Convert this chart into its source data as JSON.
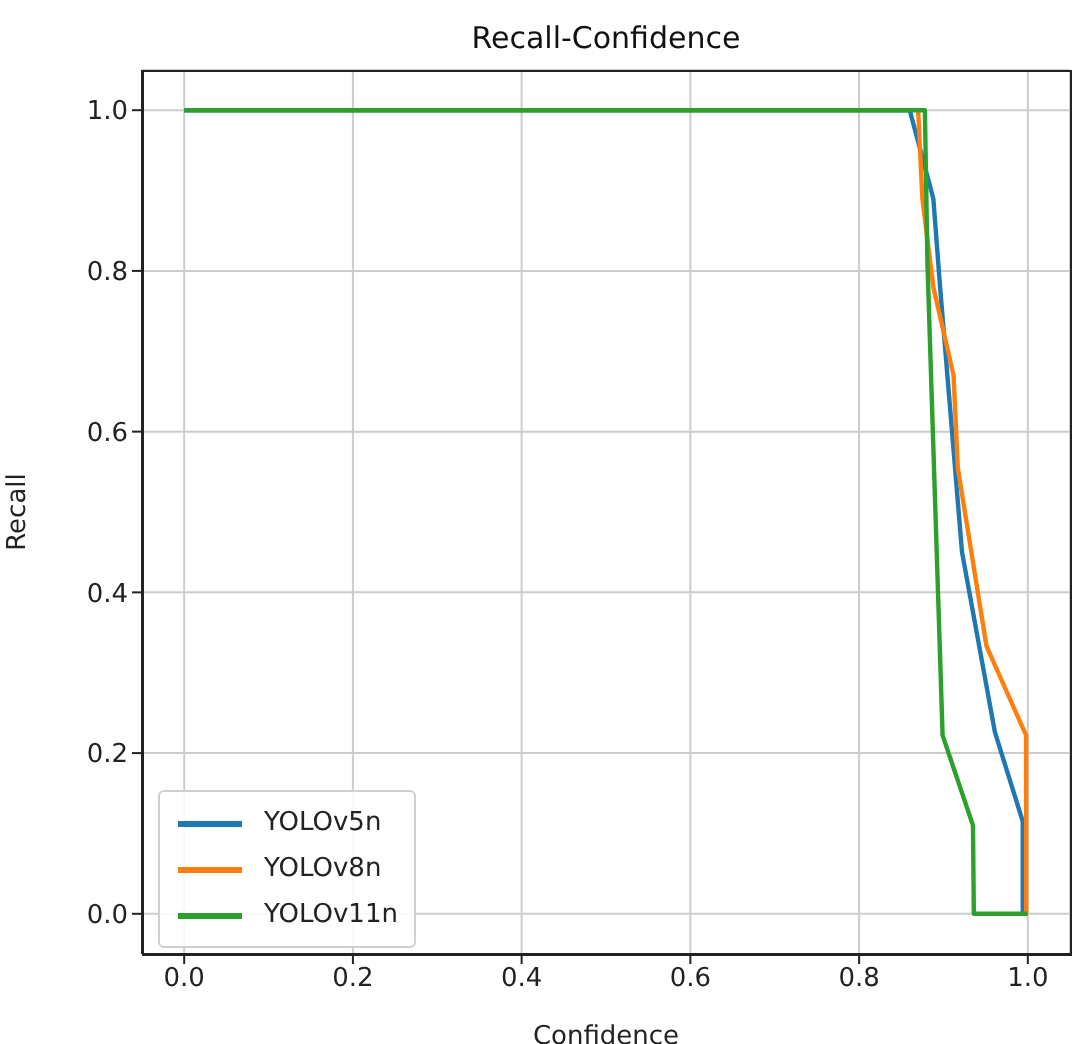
{
  "chart_data": {
    "type": "line",
    "title": "Recall-Confidence",
    "xlabel": "Confidence",
    "ylabel": "Recall",
    "xlim": [
      -0.05,
      1.05
    ],
    "xticks": [
      {
        "value": 0,
        "label": "0.0"
      },
      {
        "value": 0.2,
        "label": "0.2"
      },
      {
        "value": 0.4,
        "label": "0.4"
      },
      {
        "value": 0.6,
        "label": "0.6"
      },
      {
        "value": 0.8,
        "label": "0.8"
      },
      {
        "value": 1,
        "label": "1.0"
      }
    ],
    "ylim": [
      -0.05,
      1.05
    ],
    "yticks": [
      {
        "value": 0,
        "label": "0.0"
      },
      {
        "value": 0.2,
        "label": "0.2"
      },
      {
        "value": 0.4,
        "label": "0.4"
      },
      {
        "value": 0.6,
        "label": "0.6"
      },
      {
        "value": 0.8,
        "label": "0.8"
      },
      {
        "value": 1,
        "label": "1.0"
      }
    ],
    "grid": true,
    "legend": "bottom left",
    "marker": "none",
    "line_style": "solid",
    "series": [
      {
        "name": "YOLOv5n",
        "color": "#1f77b4",
        "x": [
          0,
          0.86,
          0.888,
          0.896,
          0.922,
          0.961,
          0.994,
          0.994
        ],
        "values": [
          1,
          1,
          0.89,
          0.78,
          0.45,
          0.226,
          0.115,
          0
        ]
      },
      {
        "name": "YOLOv8n",
        "color": "#ff7f0e",
        "x": [
          0.87,
          0.875,
          0.888,
          0.912,
          0.917,
          0.951,
          0.998,
          0.998
        ],
        "values": [
          1,
          0.89,
          0.78,
          0.67,
          0.555,
          0.333,
          0.222,
          0
        ]
      },
      {
        "name": "YOLOv11n",
        "color": "#2ca02c",
        "x": [
          0,
          0.878,
          0.881,
          0.899,
          0.935,
          0.936,
          1
        ],
        "values": [
          1,
          1,
          0.81,
          0.222,
          0.11,
          0,
          0
        ]
      }
    ]
  }
}
